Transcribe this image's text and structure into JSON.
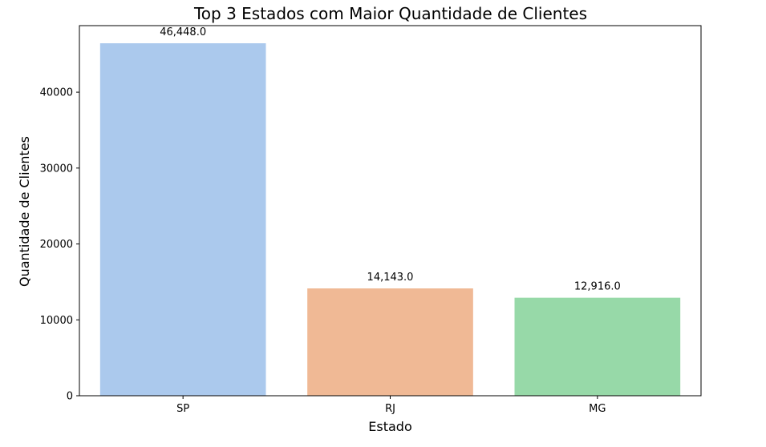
{
  "chart_data": {
    "type": "bar",
    "title": "Top 3 Estados com Maior Quantidade de Clientes",
    "xlabel": "Estado",
    "ylabel": "Quantidade de Clientes",
    "categories": [
      "SP",
      "RJ",
      "MG"
    ],
    "values": [
      46448,
      14143,
      12916
    ],
    "data_labels": [
      "46,448.0",
      "14,143.0",
      "12,916.0"
    ],
    "colors": [
      "#abc9ed",
      "#f0b995",
      "#97d9a8"
    ],
    "yticks": [
      0,
      10000,
      20000,
      30000,
      40000
    ],
    "ylim": [
      0,
      48770
    ],
    "grid": false,
    "legend": "none"
  }
}
